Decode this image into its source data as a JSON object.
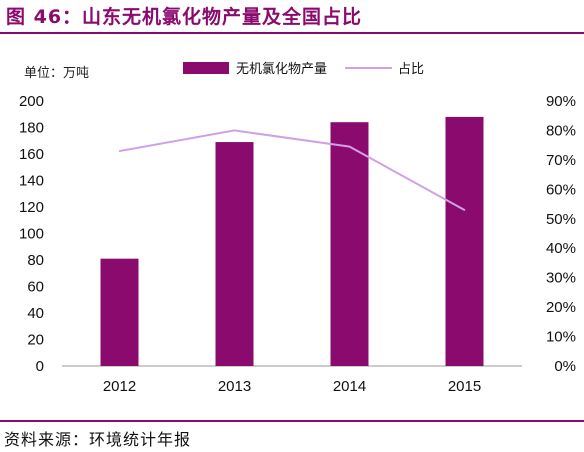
{
  "title": "图 46：山东无机氯化物产量及全国占比",
  "unit_label": "单位：万吨",
  "source": "资料来源：环境统计年报",
  "colors": {
    "accent": "#8b0a6e",
    "bar": "#8b0a6e",
    "line": "#cfa0e8"
  },
  "chart_data": {
    "type": "bar",
    "categories": [
      "2012",
      "2013",
      "2014",
      "2015"
    ],
    "series": [
      {
        "name": "无机氯化物产量",
        "type": "bar",
        "axis": "left",
        "values": [
          81,
          169,
          184,
          188
        ]
      },
      {
        "name": "占比",
        "type": "line",
        "axis": "right",
        "values": [
          0.73,
          0.8,
          0.745,
          0.53
        ]
      }
    ],
    "left_axis": {
      "ylim": [
        0,
        200
      ],
      "ticks": [
        "0",
        "20",
        "40",
        "60",
        "80",
        "100",
        "120",
        "140",
        "160",
        "180",
        "200"
      ]
    },
    "right_axis": {
      "ylim": [
        0,
        0.9
      ],
      "ticks": [
        "0%",
        "10%",
        "20%",
        "30%",
        "40%",
        "50%",
        "60%",
        "70%",
        "80%",
        "90%"
      ]
    },
    "legend_position": "top",
    "grid": false
  }
}
